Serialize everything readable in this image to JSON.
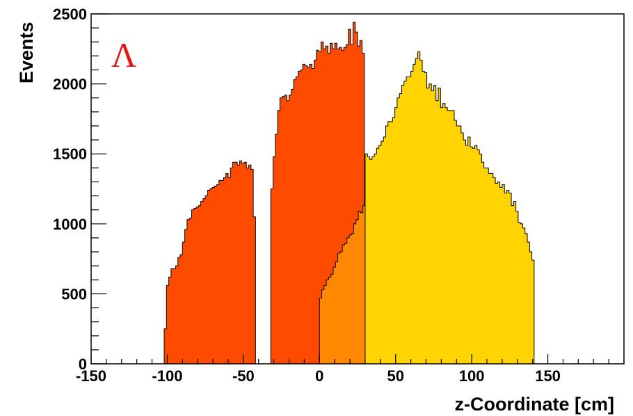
{
  "chart_data": {
    "type": "histogram",
    "xlabel": "z-Coordinate [cm]",
    "ylabel": "Events",
    "annotation": "Λ",
    "xlim": [
      -150,
      200
    ],
    "ylim": [
      0,
      2500
    ],
    "x_ticks": [
      -150,
      -100,
      -50,
      0,
      50,
      100,
      150
    ],
    "y_ticks": [
      0,
      500,
      1000,
      1500,
      2000,
      2500
    ],
    "grid": false,
    "series": [
      {
        "color": "#ff4b00",
        "bin_edges_start": -102,
        "bin_width": 1.5,
        "values": [
          0,
          0,
          0,
          0,
          0,
          0,
          0,
          0,
          0,
          0,
          0,
          0,
          0,
          0,
          0,
          0,
          0,
          0,
          0,
          0,
          0,
          0,
          0,
          0,
          0,
          0,
          0,
          0,
          0,
          0,
          0,
          0,
          0,
          0,
          0,
          0,
          0,
          0,
          0,
          0,
          0,
          0,
          0,
          0,
          0,
          0,
          0,
          0,
          0,
          0,
          0,
          0,
          0,
          0,
          0,
          0,
          0,
          0,
          0,
          0,
          0,
          0,
          0,
          0,
          0,
          0,
          0,
          0,
          0,
          0,
          0,
          0,
          0,
          0,
          0,
          0,
          0,
          0,
          0,
          0,
          0,
          0,
          0,
          0,
          0,
          0,
          0,
          0,
          0,
          0,
          0,
          0,
          0,
          0,
          0,
          0,
          0,
          0,
          0,
          0,
          0,
          0,
          0,
          0,
          0,
          0,
          0,
          0,
          0,
          0,
          0,
          0,
          0,
          0,
          0,
          0,
          0,
          0,
          0,
          0,
          0,
          0,
          0,
          0,
          0,
          0,
          0,
          0,
          0,
          0,
          0,
          0,
          0,
          0,
          0,
          0,
          0,
          0,
          0,
          0,
          0,
          0,
          0,
          0,
          0,
          0,
          0,
          0,
          0,
          0,
          0,
          0,
          0,
          0,
          0,
          0,
          0,
          0,
          0,
          0
        ]
      },
      {
        "name": "",
        "color": "#ff4b00",
        "bin_start": -102,
        "bin_width": 1.5,
        "values": [
          250,
          560,
          620,
          680,
          680,
          700,
          760,
          780,
          870,
          960,
          1030,
          1040,
          1100,
          1110,
          1120,
          1130,
          1160,
          1180,
          1200,
          1240,
          1250,
          1260,
          1270,
          1280,
          1310,
          1310,
          1330,
          1360,
          1330,
          1400,
          1440,
          1440,
          1420,
          1450,
          1430,
          1440,
          1400,
          1420,
          1390,
          1050
        ]
      },
      {
        "color": "#ff4b00",
        "bin_start": -32,
        "bin_width": 1.5,
        "values": [
          1250,
          1480,
          1640,
          1810,
          1900,
          1910,
          1920,
          1880,
          1920,
          1960,
          2030,
          2050,
          2090,
          2100,
          2140,
          2130,
          2120,
          2140,
          2110,
          2170,
          2240,
          2230,
          2300,
          2250,
          2270,
          2220,
          2290,
          2250,
          2290,
          2250,
          2260,
          2240,
          2260,
          2280,
          2390,
          2280,
          2440,
          2370,
          2270,
          2310,
          2220
        ]
      },
      {
        "color": "#ff8800",
        "bin_start": 0,
        "bin_width": 1.5,
        "values": [
          470,
          530,
          560,
          600,
          620,
          640,
          690,
          730,
          790,
          800,
          850,
          860,
          900,
          920,
          930,
          1000,
          1030,
          1090,
          1080,
          1130,
          1170,
          1210,
          1230,
          1230,
          1260,
          1300,
          1360,
          1350
        ]
      },
      {
        "color": "#ffd400",
        "bin_start": 30,
        "bin_width": 1.5,
        "values": [
          1500,
          1480,
          1460,
          1480,
          1500,
          1540,
          1560,
          1590,
          1620,
          1700,
          1730,
          1730,
          1760,
          1830,
          1900,
          1930,
          1990,
          2020,
          2050,
          2050,
          2090,
          2140,
          2180,
          2230,
          2170,
          2090,
          2080,
          1970,
          2000,
          1950,
          1990,
          1880,
          1970,
          1830,
          1860,
          1830,
          1810,
          1810,
          1810,
          1740,
          1700,
          1700,
          1650,
          1600,
          1560,
          1620,
          1550,
          1540,
          1560,
          1530,
          1500,
          1440,
          1400,
          1400,
          1360,
          1360,
          1330,
          1290,
          1300,
          1260,
          1280,
          1220,
          1240,
          1220,
          1130,
          1160,
          1090,
          1010,
          1000,
          970,
          930,
          870,
          800,
          740
        ]
      }
    ]
  }
}
